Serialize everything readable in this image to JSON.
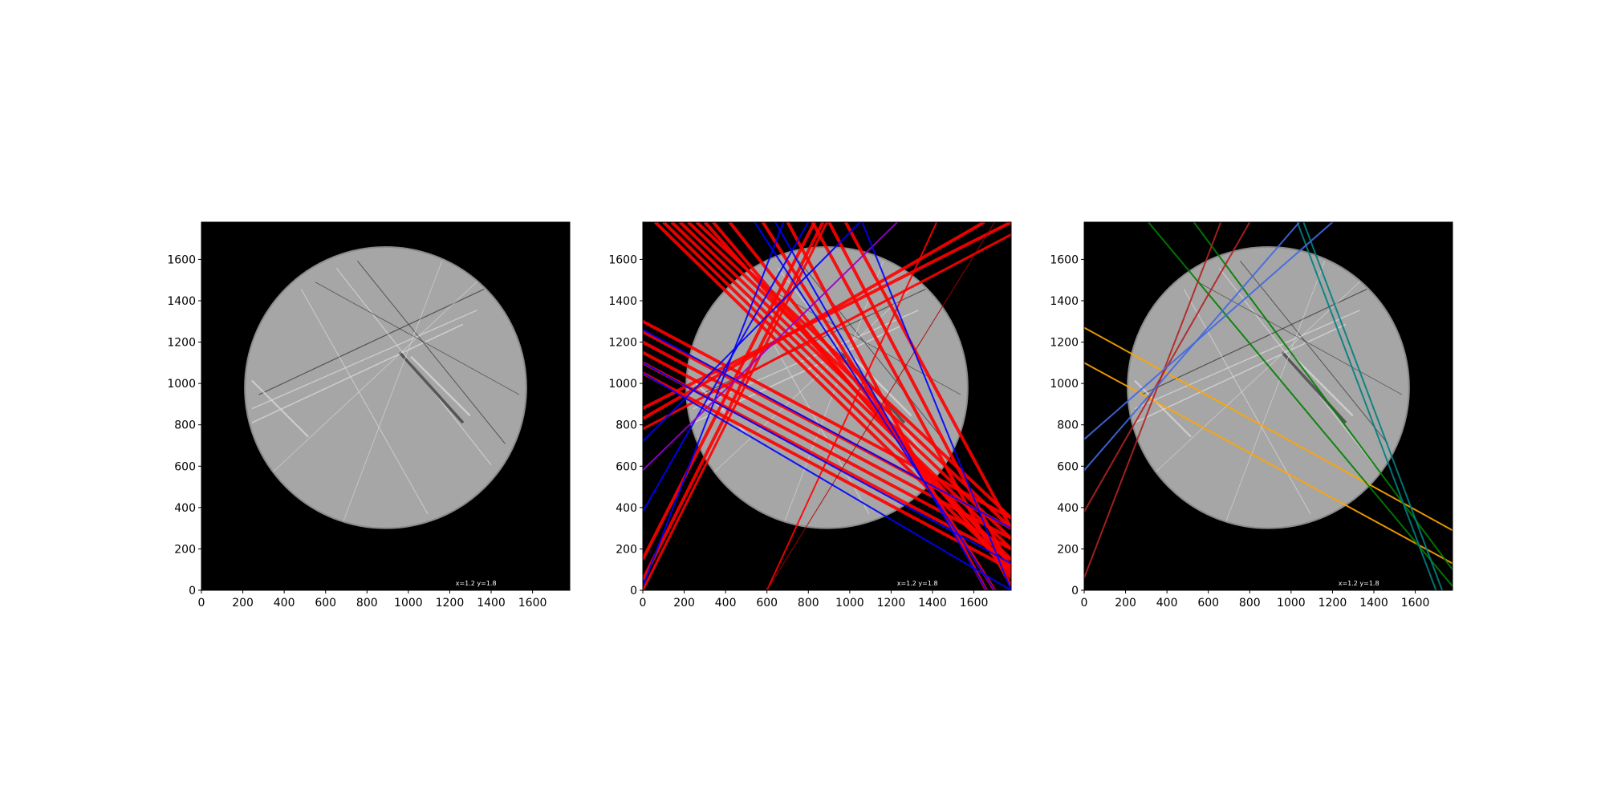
{
  "figure": {
    "background": "#ffffff",
    "image_colors": {
      "frame": "#000000",
      "disk": "#a6a6a6",
      "disk_edge": "#8a8a8a",
      "streak": "#d8d8d8",
      "dark_streak": "#3a3a3a"
    }
  },
  "chart_data": [
    {
      "type": "image",
      "panel": "original",
      "title": "",
      "xlabel": "",
      "ylabel": "",
      "xlim": [
        0,
        1780
      ],
      "ylim": [
        0,
        1780
      ],
      "xticks": [
        0,
        200,
        400,
        600,
        800,
        1000,
        1200,
        1400,
        1600
      ],
      "yticks": [
        0,
        200,
        400,
        600,
        800,
        1000,
        1200,
        1400,
        1600
      ],
      "stamp_text": "x=1.2 y=1.8",
      "disk": {
        "cx": 890,
        "cy": 980,
        "r": 680
      },
      "lines": []
    },
    {
      "type": "image",
      "panel": "all-detected-lines",
      "title": "",
      "xlabel": "",
      "ylabel": "",
      "xlim": [
        0,
        1780
      ],
      "ylim": [
        0,
        1780
      ],
      "xticks": [
        0,
        200,
        400,
        600,
        800,
        1000,
        1200,
        1400,
        1600
      ],
      "yticks": [
        0,
        200,
        400,
        600,
        800,
        1000,
        1200,
        1400,
        1600
      ],
      "stamp_text": "x=1.2 y=1.8",
      "disk": {
        "cx": 890,
        "cy": 980,
        "r": 680
      },
      "lines": [
        {
          "x1": 0,
          "y1": 1250,
          "x2": 1780,
          "y2": 300,
          "color": "#ff0000",
          "width": 4
        },
        {
          "x1": 0,
          "y1": 1200,
          "x2": 1780,
          "y2": 250,
          "color": "#ff0000",
          "width": 4
        },
        {
          "x1": 0,
          "y1": 1150,
          "x2": 1780,
          "y2": 200,
          "color": "#ff0000",
          "width": 4
        },
        {
          "x1": 0,
          "y1": 1100,
          "x2": 1780,
          "y2": 150,
          "color": "#ff0000",
          "width": 4
        },
        {
          "x1": 0,
          "y1": 1050,
          "x2": 1780,
          "y2": 100,
          "color": "#ff0000",
          "width": 4
        },
        {
          "x1": 0,
          "y1": 1300,
          "x2": 1780,
          "y2": 350,
          "color": "#ff0000",
          "width": 4
        },
        {
          "x1": 60,
          "y1": 1780,
          "x2": 1780,
          "y2": 100,
          "color": "#ff0000",
          "width": 4
        },
        {
          "x1": 100,
          "y1": 1780,
          "x2": 1780,
          "y2": 150,
          "color": "#ff0000",
          "width": 4
        },
        {
          "x1": 140,
          "y1": 1780,
          "x2": 1780,
          "y2": 200,
          "color": "#ff0000",
          "width": 4
        },
        {
          "x1": 180,
          "y1": 1780,
          "x2": 1780,
          "y2": 250,
          "color": "#ff0000",
          "width": 4
        },
        {
          "x1": 220,
          "y1": 1780,
          "x2": 1780,
          "y2": 300,
          "color": "#ff0000",
          "width": 4
        },
        {
          "x1": 260,
          "y1": 1780,
          "x2": 1780,
          "y2": 350,
          "color": "#ff0000",
          "width": 4
        },
        {
          "x1": 300,
          "y1": 1780,
          "x2": 1780,
          "y2": 120,
          "color": "#ff0000",
          "width": 4
        },
        {
          "x1": 340,
          "y1": 1780,
          "x2": 1780,
          "y2": 80,
          "color": "#ff0000",
          "width": 4
        },
        {
          "x1": 420,
          "y1": 1780,
          "x2": 1780,
          "y2": 60,
          "color": "#ff0000",
          "width": 4
        },
        {
          "x1": 580,
          "y1": 1780,
          "x2": 1700,
          "y2": 0,
          "color": "#ff0000",
          "width": 4
        },
        {
          "x1": 700,
          "y1": 1780,
          "x2": 1660,
          "y2": 0,
          "color": "#ff0000",
          "width": 4
        },
        {
          "x1": 820,
          "y1": 1780,
          "x2": 1780,
          "y2": 20,
          "color": "#ff0000",
          "width": 4
        },
        {
          "x1": 900,
          "y1": 1780,
          "x2": 1780,
          "y2": 100,
          "color": "#ff0000",
          "width": 4
        },
        {
          "x1": 980,
          "y1": 1780,
          "x2": 1780,
          "y2": 300,
          "color": "#ff0000",
          "width": 4
        },
        {
          "x1": 0,
          "y1": 880,
          "x2": 1780,
          "y2": 1780,
          "color": "#ff0000",
          "width": 4
        },
        {
          "x1": 0,
          "y1": 830,
          "x2": 1650,
          "y2": 1780,
          "color": "#ff0000",
          "width": 4
        },
        {
          "x1": 0,
          "y1": 780,
          "x2": 1780,
          "y2": 1720,
          "color": "#ff0000",
          "width": 3
        },
        {
          "x1": 0,
          "y1": 150,
          "x2": 830,
          "y2": 1780,
          "color": "#ff0000",
          "width": 4
        },
        {
          "x1": 0,
          "y1": 50,
          "x2": 870,
          "y2": 1780,
          "color": "#ff0000",
          "width": 4
        },
        {
          "x1": 0,
          "y1": 0,
          "x2": 890,
          "y2": 1780,
          "color": "#ff0000",
          "width": 3
        },
        {
          "x1": 600,
          "y1": 0,
          "x2": 1420,
          "y2": 1780,
          "color": "#ff0000",
          "width": 2
        },
        {
          "x1": 600,
          "y1": 0,
          "x2": 1700,
          "y2": 1780,
          "color": "#aa0000",
          "width": 1
        },
        {
          "x1": 0,
          "y1": 1100,
          "x2": 1780,
          "y2": 130,
          "color": "#0000ff",
          "width": 2
        },
        {
          "x1": 0,
          "y1": 1050,
          "x2": 1780,
          "y2": 0,
          "color": "#0000ff",
          "width": 2
        },
        {
          "x1": 0,
          "y1": 1260,
          "x2": 1780,
          "y2": 300,
          "color": "#0000ff",
          "width": 2
        },
        {
          "x1": 0,
          "y1": 20,
          "x2": 680,
          "y2": 1780,
          "color": "#0000ff",
          "width": 2
        },
        {
          "x1": 0,
          "y1": 380,
          "x2": 800,
          "y2": 1780,
          "color": "#0000ff",
          "width": 2
        },
        {
          "x1": 0,
          "y1": 720,
          "x2": 1050,
          "y2": 1780,
          "color": "#0000ff",
          "width": 2
        },
        {
          "x1": 0,
          "y1": 580,
          "x2": 1230,
          "y2": 1780,
          "color": "#9900cc",
          "width": 2
        },
        {
          "x1": 1060,
          "y1": 1780,
          "x2": 1780,
          "y2": 0,
          "color": "#0000ff",
          "width": 2
        },
        {
          "x1": 540,
          "y1": 1780,
          "x2": 1700,
          "y2": 0,
          "color": "#0000ff",
          "width": 2
        },
        {
          "x1": 640,
          "y1": 1780,
          "x2": 1660,
          "y2": 0,
          "color": "#0000ff",
          "width": 2
        }
      ]
    },
    {
      "type": "image",
      "panel": "selected-lines",
      "title": "",
      "xlabel": "",
      "ylabel": "",
      "xlim": [
        0,
        1780
      ],
      "ylim": [
        0,
        1780
      ],
      "xticks": [
        0,
        200,
        400,
        600,
        800,
        1000,
        1200,
        1400,
        1600
      ],
      "yticks": [
        0,
        200,
        400,
        600,
        800,
        1000,
        1200,
        1400,
        1600
      ],
      "stamp_text": "x=1.2 y=1.8",
      "disk": {
        "cx": 890,
        "cy": 980,
        "r": 680
      },
      "lines": [
        {
          "x1": 0,
          "y1": 1270,
          "x2": 1780,
          "y2": 290,
          "color": "#ffa500",
          "width": 2
        },
        {
          "x1": 0,
          "y1": 1100,
          "x2": 1780,
          "y2": 130,
          "color": "#ffa500",
          "width": 2
        },
        {
          "x1": 310,
          "y1": 1780,
          "x2": 1780,
          "y2": 20,
          "color": "#008000",
          "width": 2
        },
        {
          "x1": 530,
          "y1": 1780,
          "x2": 1780,
          "y2": 100,
          "color": "#008000",
          "width": 2
        },
        {
          "x1": 1030,
          "y1": 1780,
          "x2": 1700,
          "y2": 0,
          "color": "#008080",
          "width": 2
        },
        {
          "x1": 1060,
          "y1": 1780,
          "x2": 1730,
          "y2": 0,
          "color": "#008080",
          "width": 2
        },
        {
          "x1": 0,
          "y1": 60,
          "x2": 660,
          "y2": 1780,
          "color": "#b22222",
          "width": 2
        },
        {
          "x1": 0,
          "y1": 380,
          "x2": 800,
          "y2": 1780,
          "color": "#b22222",
          "width": 2
        },
        {
          "x1": 0,
          "y1": 580,
          "x2": 1040,
          "y2": 1780,
          "color": "#4169e1",
          "width": 2
        },
        {
          "x1": 0,
          "y1": 730,
          "x2": 1200,
          "y2": 1780,
          "color": "#4169e1",
          "width": 2
        }
      ]
    }
  ]
}
